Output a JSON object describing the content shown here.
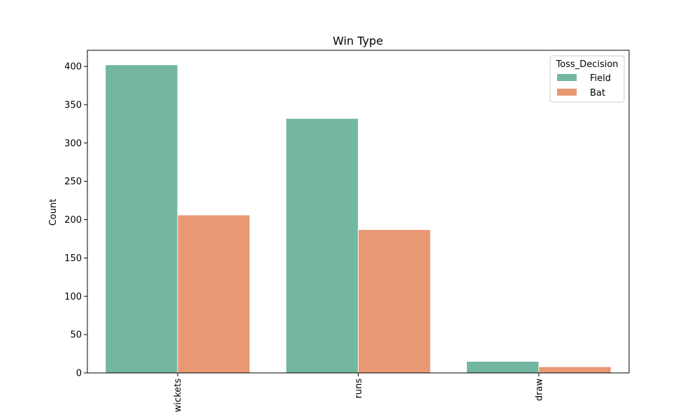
{
  "chart_data": {
    "type": "bar",
    "title": "Win Type",
    "xlabel": "",
    "ylabel": "Count",
    "categories": [
      "wickets",
      "runs",
      "draw"
    ],
    "series": [
      {
        "name": "Field",
        "values": [
          402,
          332,
          15
        ],
        "color": "#73b7a1"
      },
      {
        "name": "Bat",
        "values": [
          206,
          187,
          8
        ],
        "color": "#e99874"
      }
    ],
    "ylim": [
      0,
      421
    ],
    "yticks": [
      0,
      50,
      100,
      150,
      200,
      250,
      300,
      350,
      400
    ],
    "grid": false,
    "legend": {
      "title": "Toss_Decision",
      "placement": "top-right"
    },
    "x_tick_rotation": "vertical"
  }
}
